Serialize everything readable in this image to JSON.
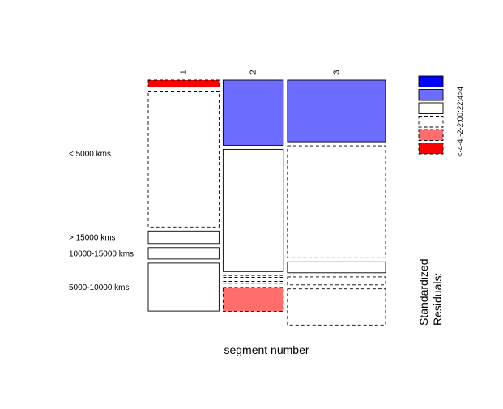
{
  "chart_data": {
    "type": "mosaic",
    "title": "",
    "xlabel": "segment number",
    "ylabel": "",
    "columns": [
      "1",
      "2",
      "3"
    ],
    "rows": [
      "< 5000 kms",
      "> 15000 kms",
      "10000-15000 kms",
      "5000-10000 kms"
    ],
    "column_proportions": [
      0.309,
      0.263,
      0.428
    ],
    "cells": [
      {
        "column": "1",
        "segments": [
          {
            "row": "< 5000 kms",
            "share": 0.03,
            "residual_class": "<-4"
          },
          {
            "row": "< 5000 kms",
            "share": 0.595,
            "residual_class": "-2:0"
          },
          {
            "row": "> 15000 kms",
            "share": 0.055,
            "residual_class": "0:2"
          },
          {
            "row": "10000-15000 kms",
            "share": 0.05,
            "residual_class": "0:2"
          },
          {
            "row": "5000-10000 kms",
            "share": 0.21,
            "residual_class": "0:2"
          }
        ]
      },
      {
        "column": "2",
        "segments": [
          {
            "row": "< 5000 kms",
            "share": 0.285,
            "residual_class": "2:4"
          },
          {
            "row": "< 5000 kms",
            "share": 0.535,
            "residual_class": "0:2"
          },
          {
            "row": "> 15000 kms",
            "share": 0.008,
            "residual_class": "-2:0"
          },
          {
            "row": "10000-15000 kms",
            "share": 0.008,
            "residual_class": "-2:0"
          },
          {
            "row": "5000-10000 kms",
            "share": 0.105,
            "residual_class": "-4:-2"
          }
        ]
      },
      {
        "column": "3",
        "segments": [
          {
            "row": "< 5000 kms",
            "share": 0.27,
            "residual_class": "2:4"
          },
          {
            "row": "< 5000 kms",
            "share": 0.49,
            "residual_class": "-2:0"
          },
          {
            "row": "> 15000 kms",
            "share": 0.048,
            "residual_class": "0:2"
          },
          {
            "row": "10000-15000 kms",
            "share": 0.035,
            "residual_class": "-2:0"
          },
          {
            "row": "5000-10000 kms",
            "share": 0.158,
            "residual_class": "-2:0"
          }
        ]
      }
    ],
    "legend": {
      "title_lines": [
        "Standardized",
        "Residuals:"
      ],
      "ticks": [
        "<-4",
        "-4:-2",
        "-2:0",
        "0:2",
        "2:4",
        ">4"
      ],
      "colors": [
        "#ff0000",
        "#ff6d6d",
        "#ffffff",
        "#ffffff",
        "#6c6cff",
        "#0000ff"
      ],
      "dashed": [
        true,
        true,
        true,
        false,
        false,
        false
      ]
    }
  }
}
